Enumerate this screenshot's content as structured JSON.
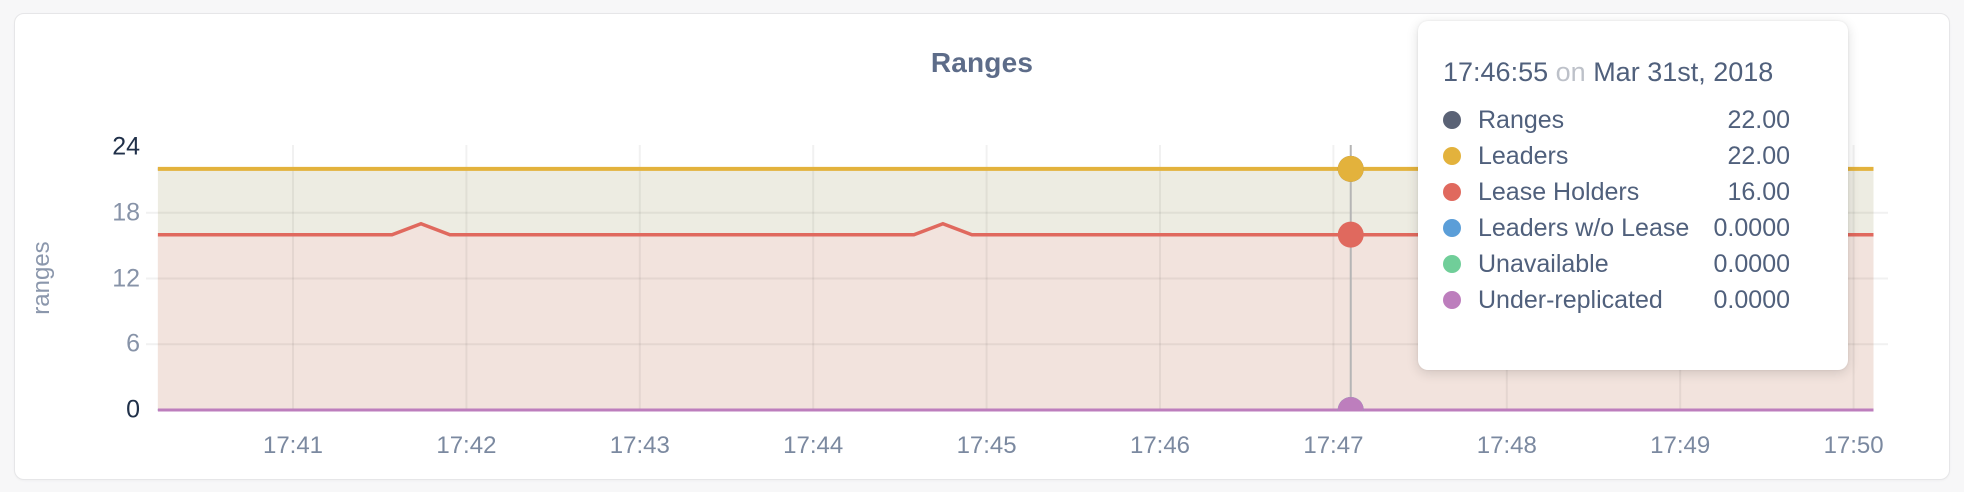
{
  "card": {},
  "chart": {
    "title": "Ranges",
    "y_axis": {
      "label": "ranges"
    },
    "colors": {
      "grid": "rgba(0,0,0,0.055)",
      "hover_line": "#b5b5b5",
      "leaders_fill": "#edece2",
      "lease_fill": "#f2e3dd"
    }
  },
  "chart_data": {
    "type": "area",
    "title": "Ranges",
    "ylabel": "ranges",
    "ylim": [
      0,
      24
    ],
    "y_ticks": [
      0,
      6,
      12,
      18,
      24
    ],
    "x_ticks": [
      "17:41",
      "17:42",
      "17:43",
      "17:44",
      "17:45",
      "17:46",
      "17:47",
      "17:48",
      "17:49",
      "17:50"
    ],
    "x_unit": "minutes after 17:40",
    "x_window": [
      0.221,
      10.115
    ],
    "grid": "on",
    "series": [
      {
        "name": "Ranges",
        "color": "#5a6275",
        "points": [
          [
            0.221,
            22
          ],
          [
            10.115,
            22
          ]
        ]
      },
      {
        "name": "Leaders",
        "color": "#e3b23c",
        "fill": "leaders_fill",
        "points": [
          [
            0.221,
            22
          ],
          [
            10.115,
            22
          ]
        ]
      },
      {
        "name": "Lease Holders",
        "color": "#e0695e",
        "fill": "lease_fill",
        "points": [
          [
            0.221,
            16
          ],
          [
            1.571,
            16
          ],
          [
            1.738,
            17
          ],
          [
            1.905,
            16
          ],
          [
            4.581,
            16
          ],
          [
            4.748,
            17
          ],
          [
            4.915,
            16
          ],
          [
            10.115,
            16
          ]
        ]
      },
      {
        "name": "Leaders w/o Lease",
        "color": "#5b9ed8",
        "points": [
          [
            0.221,
            0
          ],
          [
            10.115,
            0
          ]
        ]
      },
      {
        "name": "Unavailable",
        "color": "#70ce99",
        "points": [
          [
            0.221,
            0
          ],
          [
            10.115,
            0
          ]
        ]
      },
      {
        "name": "Under-replicated",
        "color": "#bd7ebd",
        "points": [
          [
            0.221,
            0
          ],
          [
            10.115,
            0
          ]
        ]
      }
    ],
    "hover": {
      "x": 7.1,
      "time": "17:46:55"
    }
  },
  "tooltip": {
    "time": "17:46:55",
    "connector": "on",
    "date": "Mar 31st, 2018",
    "rows": [
      {
        "label": "Ranges",
        "value": "22.00",
        "color": "#5a6275"
      },
      {
        "label": "Leaders",
        "value": "22.00",
        "color": "#e3b23c"
      },
      {
        "label": "Lease Holders",
        "value": "16.00",
        "color": "#e0695e"
      },
      {
        "label": "Leaders w/o Lease",
        "value": "0.0000",
        "color": "#5b9ed8"
      },
      {
        "label": "Unavailable",
        "value": "0.0000",
        "color": "#70ce99"
      },
      {
        "label": "Under-replicated",
        "value": "0.0000",
        "color": "#bd7ebd"
      }
    ]
  }
}
